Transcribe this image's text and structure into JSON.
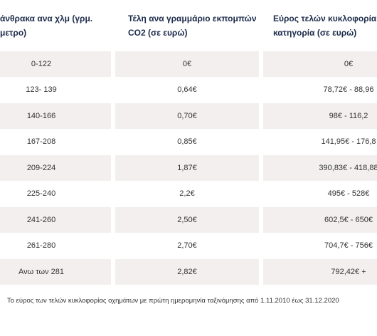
{
  "table": {
    "header": [
      [
        "άνθρακα ανα χλμ (γρμ.",
        "μετρο)"
      ],
      [
        "Τέλη ανα γραμμάριο εκπομπών",
        "CO2 (σε ευρώ)"
      ],
      [
        "Εύρος τελών κυκλοφορία",
        "κατηγορία (σε ευρώ)"
      ]
    ],
    "rows": [
      [
        "0-122",
        "0€",
        "0€"
      ],
      [
        "123- 139",
        "0,64€",
        "78,72€ - 88,96"
      ],
      [
        "140-166",
        "0,70€",
        "98€ - 116,2"
      ],
      [
        "167-208",
        "0,85€",
        "141,95€ - 176,8"
      ],
      [
        "209-224",
        "1,87€",
        "390,83€ - 418,88"
      ],
      [
        "225-240",
        "2,2€",
        "495€ - 528€"
      ],
      [
        "241-260",
        "2,50€",
        "602,5€ - 650€"
      ],
      [
        "261-280",
        "2,70€",
        "704,7€ - 756€"
      ],
      [
        "Ανω των 281",
        "2,82€",
        "792,42€ +"
      ]
    ],
    "note": "Το εύρος των τελών κυκλοφορίας οχημάτων με πρώτη ημερομηνία ταξινόμησης από 1.11.2010 έως 31.12.2020"
  }
}
